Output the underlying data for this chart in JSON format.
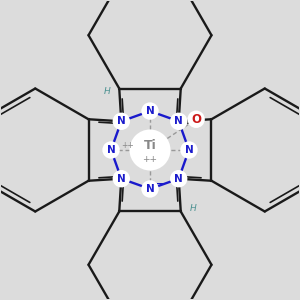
{
  "background": "#dcdcdc",
  "bond_color": "#1a1a1a",
  "N_color": "#1a1acc",
  "O_color": "#cc1a1a",
  "Ti_color": "#888888",
  "H_color": "#4a9090",
  "figsize": [
    3.0,
    3.0
  ],
  "dpi": 100,
  "xlim": [
    -1.45,
    1.45
  ],
  "ylim": [
    -1.45,
    1.45
  ]
}
